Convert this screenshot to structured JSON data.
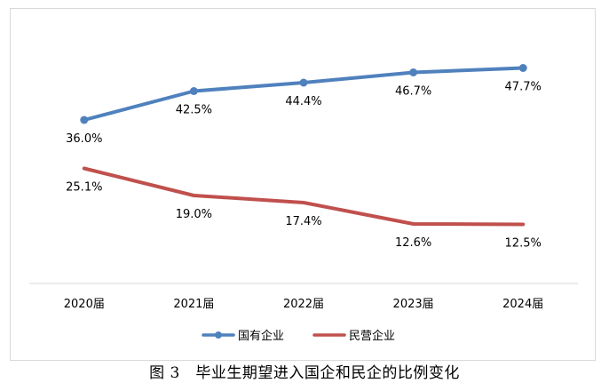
{
  "caption": "图 3　毕业生期望进入国企和民企的比例变化",
  "chart_data": {
    "type": "line",
    "categories": [
      "2020届",
      "2021届",
      "2022届",
      "2023届",
      "2024届"
    ],
    "series": [
      {
        "name": "国有企业",
        "color": "#4f81bd",
        "values": [
          36.0,
          42.5,
          44.4,
          46.7,
          47.7
        ],
        "labels": [
          "36.0%",
          "42.5%",
          "44.4%",
          "46.7%",
          "47.7%"
        ],
        "marker": "circle"
      },
      {
        "name": "民营企业",
        "color": "#c0504d",
        "values": [
          25.1,
          19.0,
          17.4,
          12.6,
          12.5
        ],
        "labels": [
          "25.1%",
          "19.0%",
          "17.4%",
          "12.6%",
          "12.5%"
        ],
        "marker": "none"
      }
    ],
    "unit": "%",
    "ylim": [
      5,
      55
    ],
    "grid": false,
    "legend_position": "bottom"
  }
}
